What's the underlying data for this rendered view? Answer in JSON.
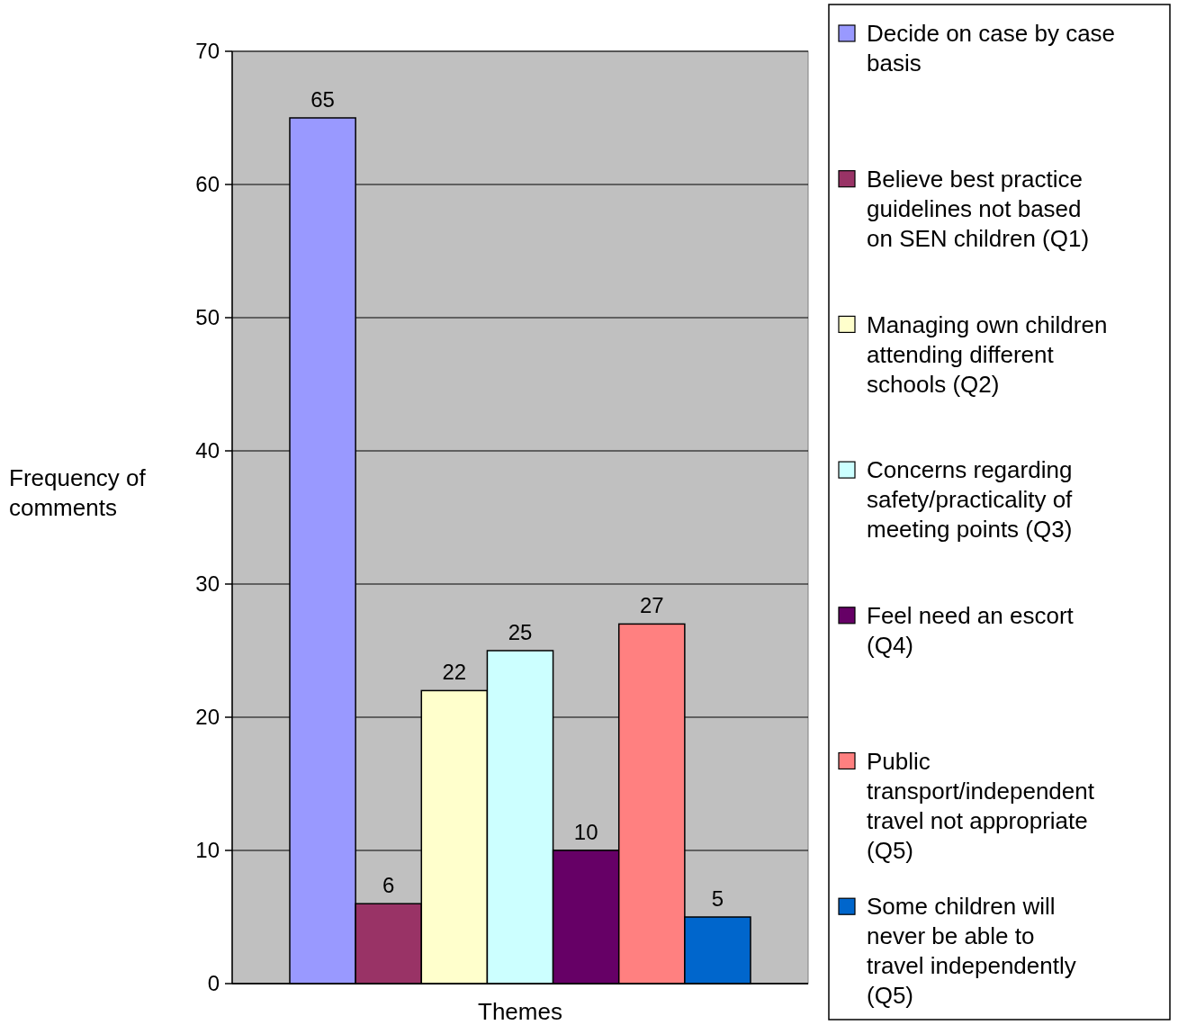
{
  "chart_data": {
    "type": "bar",
    "xlabel": "Themes",
    "ylabel": "Frequency of comments",
    "categories": [
      null
    ],
    "ylim": [
      0,
      70
    ],
    "yticks": [
      0,
      10,
      20,
      30,
      40,
      50,
      60,
      70
    ],
    "grid": "y",
    "legend": "right",
    "data_labels": true,
    "series": [
      {
        "name": "Decide on case by case basis",
        "color": "#9999ff",
        "values": [
          65
        ]
      },
      {
        "name": "Believe best practice guidelines not based on SEN children (Q1)",
        "color": "#993366",
        "values": [
          6
        ]
      },
      {
        "name": "Managing own children attending different schools (Q2)",
        "color": "#ffffcc",
        "values": [
          22
        ]
      },
      {
        "name": "Concerns regarding safety/practicality of meeting points (Q3)",
        "color": "#ccffff",
        "values": [
          25
        ]
      },
      {
        "name": "Feel need an escort (Q4)",
        "color": "#660066",
        "values": [
          10
        ]
      },
      {
        "name": "Public transport/independent travel not appropriate (Q5)",
        "color": "#ff8080",
        "values": [
          27
        ]
      },
      {
        "name": "Some children will never be able to travel independently (Q5)",
        "color": "#0066cc",
        "values": [
          5
        ]
      }
    ]
  }
}
